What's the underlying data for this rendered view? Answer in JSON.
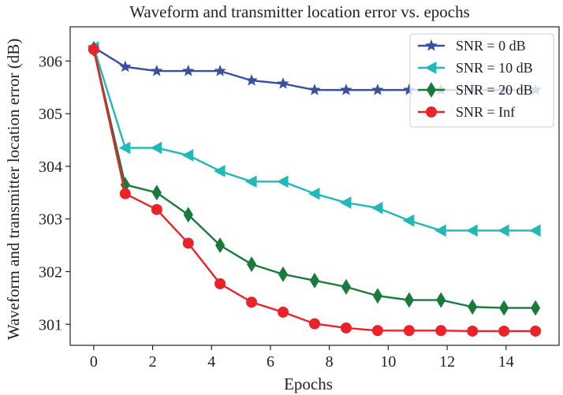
{
  "chart_data": {
    "type": "line",
    "title": "Waveform and transmitter location error vs. epochs",
    "xlabel": "Epochs",
    "ylabel": "Waveform and transmitter location error (dB)",
    "xlim": [
      -0.8,
      15.8
    ],
    "ylim": [
      300.6,
      306.65
    ],
    "xticks": [
      0,
      2,
      4,
      6,
      8,
      10,
      12,
      14
    ],
    "yticks": [
      301,
      302,
      303,
      304,
      305,
      306
    ],
    "grid": false,
    "legend_position": "top-right",
    "x": [
      0,
      1.07,
      2.14,
      3.21,
      4.29,
      5.36,
      6.43,
      7.5,
      8.57,
      9.64,
      10.71,
      11.79,
      12.86,
      13.93,
      15
    ],
    "series": [
      {
        "name": "SNR = 0 dB",
        "color": "#3a4fa0",
        "marker": "star",
        "values": [
          306.26,
          305.89,
          305.81,
          305.81,
          305.81,
          305.63,
          305.57,
          305.45,
          305.45,
          305.45,
          305.45,
          305.45,
          305.45,
          305.45,
          305.45
        ]
      },
      {
        "name": "SNR = 10 dB",
        "color": "#22b8b8",
        "marker": "triangle-left",
        "values": [
          306.26,
          304.35,
          304.35,
          304.21,
          303.91,
          303.71,
          303.71,
          303.48,
          303.31,
          303.21,
          302.97,
          302.78,
          302.78,
          302.78,
          302.78
        ]
      },
      {
        "name": "SNR = 20 dB",
        "color": "#1a7a3c",
        "marker": "diamond",
        "values": [
          306.23,
          303.65,
          303.5,
          303.08,
          302.5,
          302.14,
          301.95,
          301.83,
          301.71,
          301.54,
          301.46,
          301.46,
          301.33,
          301.31,
          301.31
        ]
      },
      {
        "name": "SNR = Inf",
        "color": "#e8232a",
        "marker": "circle",
        "values": [
          306.22,
          303.48,
          303.18,
          302.54,
          301.77,
          301.42,
          301.23,
          301.01,
          300.93,
          300.88,
          300.88,
          300.88,
          300.87,
          300.87,
          300.87
        ]
      }
    ]
  }
}
